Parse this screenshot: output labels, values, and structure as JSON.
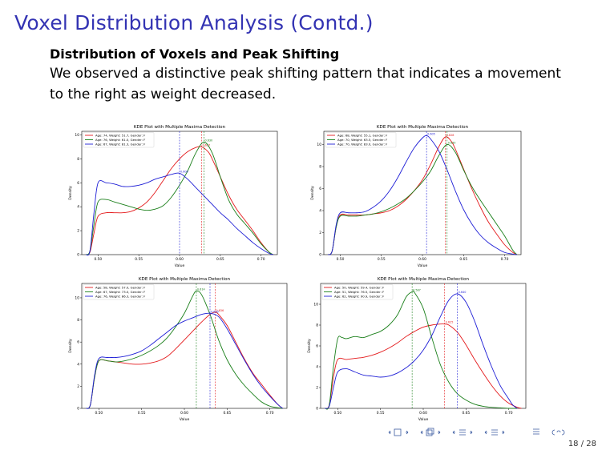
{
  "slide": {
    "title": "Voxel Distribution Analysis (Contd.)",
    "block_title": "Distribution of Voxels and Peak Shifting",
    "block_body": "We observed a distinctive peak shifting pattern that indicates a movement to the right as weight decreased.",
    "page": "18 / 28"
  },
  "colors": {
    "title": "#3333b3",
    "red": "#e41a1c",
    "green": "#1a7f1a",
    "blue": "#1f1fd6"
  },
  "chart_data": [
    {
      "type": "line",
      "title": "KDE Plot with Multiple Maxima Detection",
      "xlabel": "Value",
      "ylabel": "Density",
      "xlim": [
        0.48,
        0.72
      ],
      "ylim": [
        0,
        10.3
      ],
      "xticks": [
        "0.50",
        "0.55",
        "0.60",
        "0.65",
        "0.70"
      ],
      "yticks": [
        "0",
        "2",
        "4",
        "6",
        "8",
        "10"
      ],
      "legend": "top-left",
      "grid": false,
      "series": [
        {
          "name": "Age: 74, Weight: 51.7, Gender: F",
          "color": "red",
          "peak": 0.627,
          "peak_label": "0.627",
          "x": [
            0.485,
            0.49,
            0.495,
            0.5,
            0.51,
            0.52,
            0.53,
            0.54,
            0.55,
            0.56,
            0.57,
            0.58,
            0.59,
            0.6,
            0.61,
            0.62,
            0.627,
            0.635,
            0.64,
            0.65,
            0.66,
            0.67,
            0.68,
            0.69,
            0.7,
            0.71,
            0.715
          ],
          "y": [
            0,
            0.2,
            1.8,
            3.2,
            3.5,
            3.5,
            3.5,
            3.6,
            3.9,
            4.4,
            5.2,
            6.2,
            7.2,
            8.0,
            8.6,
            8.95,
            9.0,
            8.6,
            8.0,
            6.5,
            5.0,
            3.8,
            2.9,
            2.0,
            1.0,
            0.2,
            0
          ]
        },
        {
          "name": "Age: 76, Weight: 61.0, Gender: F",
          "color": "green",
          "peak": 0.63,
          "peak_label": "0.630",
          "x": [
            0.485,
            0.49,
            0.495,
            0.5,
            0.51,
            0.52,
            0.53,
            0.54,
            0.55,
            0.56,
            0.57,
            0.58,
            0.59,
            0.6,
            0.61,
            0.62,
            0.63,
            0.64,
            0.65,
            0.66,
            0.67,
            0.68,
            0.69,
            0.7,
            0.71,
            0.715
          ],
          "y": [
            0,
            0.3,
            2.5,
            4.4,
            4.6,
            4.4,
            4.2,
            4.0,
            3.8,
            3.7,
            3.8,
            4.1,
            4.8,
            5.8,
            7.0,
            8.5,
            9.4,
            8.5,
            6.5,
            4.6,
            3.4,
            2.6,
            1.8,
            0.9,
            0.2,
            0
          ]
        },
        {
          "name": "Age: 67, Weight: 81.3, Gender: F",
          "color": "blue",
          "peak": 0.6,
          "peak_label": "0.600",
          "x": [
            0.485,
            0.49,
            0.495,
            0.5,
            0.51,
            0.52,
            0.53,
            0.54,
            0.55,
            0.56,
            0.57,
            0.58,
            0.59,
            0.6,
            0.61,
            0.62,
            0.63,
            0.64,
            0.65,
            0.66,
            0.67,
            0.68,
            0.69,
            0.7,
            0.71,
            0.715
          ],
          "y": [
            0,
            0.3,
            3.5,
            6.0,
            6.0,
            5.9,
            5.7,
            5.7,
            5.8,
            6.0,
            6.3,
            6.5,
            6.7,
            6.8,
            6.3,
            5.6,
            4.9,
            4.2,
            3.5,
            2.9,
            2.2,
            1.6,
            1.0,
            0.5,
            0.1,
            0
          ]
        }
      ]
    },
    {
      "type": "line",
      "title": "KDE Plot with Multiple Maxima Detection",
      "xlabel": "Value",
      "ylabel": "Density",
      "xlim": [
        0.48,
        0.72
      ],
      "ylim": [
        0,
        11.2
      ],
      "xticks": [
        "0.50",
        "0.55",
        "0.60",
        "0.65",
        "0.70"
      ],
      "yticks": [
        "0",
        "2",
        "4",
        "6",
        "8",
        "10"
      ],
      "legend": "top-left",
      "grid": false,
      "series": [
        {
          "name": "Age: 68, Weight: 55.1, Gender: F",
          "color": "red",
          "peak": 0.628,
          "peak_label": "0.628",
          "x": [
            0.485,
            0.49,
            0.495,
            0.5,
            0.51,
            0.52,
            0.53,
            0.54,
            0.55,
            0.56,
            0.57,
            0.58,
            0.59,
            0.6,
            0.61,
            0.62,
            0.628,
            0.635,
            0.64,
            0.65,
            0.66,
            0.67,
            0.68,
            0.69,
            0.7,
            0.71,
            0.715
          ],
          "y": [
            0,
            0.3,
            2.5,
            3.6,
            3.6,
            3.6,
            3.6,
            3.7,
            3.8,
            4.0,
            4.4,
            5.0,
            5.8,
            6.8,
            8.2,
            9.8,
            10.7,
            10.3,
            9.6,
            7.8,
            6.0,
            4.4,
            3.0,
            1.9,
            0.9,
            0.2,
            0
          ]
        },
        {
          "name": "Age: 70, Weight: 63.5, Gender: F",
          "color": "green",
          "peak": 0.63,
          "peak_label": "0.630",
          "x": [
            0.485,
            0.49,
            0.495,
            0.5,
            0.51,
            0.52,
            0.53,
            0.54,
            0.55,
            0.56,
            0.57,
            0.58,
            0.59,
            0.6,
            0.61,
            0.62,
            0.63,
            0.64,
            0.65,
            0.66,
            0.67,
            0.68,
            0.69,
            0.7,
            0.71,
            0.715
          ],
          "y": [
            0,
            0.3,
            2.5,
            3.5,
            3.5,
            3.5,
            3.6,
            3.7,
            3.9,
            4.2,
            4.6,
            5.1,
            5.8,
            6.6,
            7.6,
            9.0,
            10.0,
            9.3,
            7.7,
            6.2,
            5.0,
            3.9,
            2.8,
            1.7,
            0.4,
            0
          ]
        },
        {
          "name": "Age: 70, Weight: 83.0, Gender: F",
          "color": "blue",
          "peak": 0.605,
          "peak_label": "0.605",
          "x": [
            0.485,
            0.49,
            0.495,
            0.5,
            0.51,
            0.52,
            0.53,
            0.54,
            0.55,
            0.56,
            0.57,
            0.58,
            0.59,
            0.6,
            0.605,
            0.61,
            0.62,
            0.63,
            0.64,
            0.65,
            0.66,
            0.67,
            0.68,
            0.69,
            0.7,
            0.71,
            0.715
          ],
          "y": [
            0,
            0.3,
            2.7,
            3.8,
            3.8,
            3.8,
            3.9,
            4.3,
            4.9,
            5.8,
            7.0,
            8.4,
            9.7,
            10.6,
            10.8,
            10.5,
            9.4,
            7.7,
            5.8,
            4.1,
            2.8,
            1.8,
            1.1,
            0.6,
            0.2,
            0.05,
            0
          ]
        }
      ]
    },
    {
      "type": "line",
      "title": "KDE Plot with Multiple Maxima Detection",
      "xlabel": "Value",
      "ylabel": "Density",
      "xlim": [
        0.48,
        0.72
      ],
      "ylim": [
        0,
        11.3
      ],
      "xticks": [
        "0.50",
        "0.55",
        "0.60",
        "0.65",
        "0.70"
      ],
      "yticks": [
        "0",
        "2",
        "4",
        "6",
        "8",
        "10"
      ],
      "legend": "top-left",
      "grid": false,
      "series": [
        {
          "name": "Age: 58, Weight: 57.0, Gender: F",
          "color": "red",
          "peak": 0.636,
          "peak_label": "0.636",
          "x": [
            0.485,
            0.49,
            0.495,
            0.5,
            0.51,
            0.52,
            0.53,
            0.54,
            0.55,
            0.56,
            0.57,
            0.58,
            0.59,
            0.6,
            0.61,
            0.62,
            0.63,
            0.636,
            0.64,
            0.65,
            0.66,
            0.67,
            0.68,
            0.69,
            0.7,
            0.71,
            0.715
          ],
          "y": [
            0,
            0.3,
            2.8,
            4.3,
            4.3,
            4.2,
            4.1,
            4.0,
            4.0,
            4.1,
            4.3,
            4.7,
            5.4,
            6.2,
            7.0,
            7.8,
            8.5,
            8.7,
            8.5,
            7.5,
            6.0,
            4.5,
            3.2,
            2.2,
            1.2,
            0.3,
            0
          ]
        },
        {
          "name": "Age: 67, Weight: 73.0, Gender: F",
          "color": "green",
          "peak": 0.614,
          "peak_label": "0.614",
          "x": [
            0.485,
            0.49,
            0.495,
            0.5,
            0.51,
            0.52,
            0.53,
            0.54,
            0.55,
            0.56,
            0.57,
            0.58,
            0.59,
            0.6,
            0.61,
            0.614,
            0.62,
            0.63,
            0.64,
            0.65,
            0.66,
            0.67,
            0.68,
            0.69,
            0.7,
            0.71,
            0.715
          ],
          "y": [
            0,
            0.3,
            2.8,
            4.3,
            4.3,
            4.2,
            4.3,
            4.5,
            4.8,
            5.2,
            5.7,
            6.4,
            7.4,
            8.6,
            10.2,
            10.6,
            10.3,
            8.5,
            6.2,
            4.4,
            3.1,
            2.1,
            1.3,
            0.6,
            0.2,
            0.05,
            0
          ]
        },
        {
          "name": "Age: 76, Weight: 86.3, Gender: F",
          "color": "blue",
          "peak": 0.63,
          "peak_label": "0.630",
          "x": [
            0.485,
            0.49,
            0.495,
            0.5,
            0.51,
            0.52,
            0.53,
            0.54,
            0.55,
            0.56,
            0.57,
            0.58,
            0.59,
            0.6,
            0.61,
            0.62,
            0.63,
            0.64,
            0.65,
            0.66,
            0.67,
            0.68,
            0.69,
            0.7,
            0.71,
            0.715
          ],
          "y": [
            0,
            0.3,
            3.0,
            4.5,
            4.6,
            4.6,
            4.7,
            4.9,
            5.2,
            5.7,
            6.3,
            6.9,
            7.5,
            7.9,
            8.2,
            8.5,
            8.6,
            8.3,
            7.2,
            5.8,
            4.4,
            3.1,
            2.0,
            1.1,
            0.3,
            0
          ]
        }
      ]
    },
    {
      "type": "line",
      "title": "KDE Plot with Multiple Maxima Detection",
      "xlabel": "Value",
      "ylabel": "Density",
      "xlim": [
        0.48,
        0.72
      ],
      "ylim": [
        0,
        12.0
      ],
      "xticks": [
        "0.50",
        "0.55",
        "0.60",
        "0.65",
        "0.70"
      ],
      "yticks": [
        "0",
        "2",
        "4",
        "6",
        "8",
        "10"
      ],
      "legend": "top-left",
      "grid": false,
      "series": [
        {
          "name": "Age: 50, Weight: 59.4, Gender: F",
          "color": "red",
          "peak": 0.625,
          "peak_label": "0.625",
          "x": [
            0.485,
            0.49,
            0.495,
            0.5,
            0.51,
            0.52,
            0.53,
            0.54,
            0.55,
            0.56,
            0.57,
            0.58,
            0.59,
            0.6,
            0.61,
            0.62,
            0.625,
            0.63,
            0.64,
            0.65,
            0.66,
            0.67,
            0.68,
            0.69,
            0.7,
            0.71,
            0.715
          ],
          "y": [
            0,
            0.3,
            3.0,
            4.7,
            4.7,
            4.8,
            4.9,
            5.1,
            5.4,
            5.8,
            6.3,
            6.9,
            7.4,
            7.8,
            8.0,
            8.1,
            8.1,
            8.0,
            7.3,
            6.1,
            4.7,
            3.4,
            2.2,
            1.2,
            0.5,
            0.1,
            0
          ]
        },
        {
          "name": "Age: 51, Weight: 76.5, Gender: F",
          "color": "green",
          "peak": 0.587,
          "peak_label": "0.587",
          "x": [
            0.485,
            0.49,
            0.495,
            0.5,
            0.505,
            0.51,
            0.52,
            0.53,
            0.54,
            0.55,
            0.56,
            0.57,
            0.58,
            0.587,
            0.59,
            0.6,
            0.61,
            0.62,
            0.63,
            0.64,
            0.65,
            0.66,
            0.67,
            0.68,
            0.69,
            0.7,
            0.71
          ],
          "y": [
            0,
            0.3,
            4.0,
            6.7,
            6.8,
            6.7,
            6.9,
            6.8,
            7.1,
            7.4,
            8.0,
            9.0,
            10.7,
            11.2,
            11.1,
            9.6,
            6.8,
            4.2,
            2.5,
            1.4,
            0.8,
            0.4,
            0.2,
            0.1,
            0.05,
            0,
            0
          ]
        },
        {
          "name": "Age: 62, Weight: 90.9, Gender: F",
          "color": "blue",
          "peak": 0.64,
          "peak_label": "0.640",
          "x": [
            0.485,
            0.49,
            0.495,
            0.5,
            0.51,
            0.52,
            0.53,
            0.54,
            0.55,
            0.56,
            0.57,
            0.58,
            0.59,
            0.6,
            0.61,
            0.62,
            0.63,
            0.64,
            0.65,
            0.66,
            0.67,
            0.68,
            0.69,
            0.7,
            0.705,
            0.71
          ],
          "y": [
            0,
            0.2,
            2.0,
            3.5,
            3.8,
            3.5,
            3.2,
            3.1,
            3.0,
            3.1,
            3.4,
            3.9,
            4.6,
            5.6,
            7.0,
            8.8,
            10.4,
            11.0,
            10.2,
            8.4,
            6.1,
            4.0,
            2.2,
            0.9,
            0.3,
            0
          ]
        }
      ]
    }
  ]
}
